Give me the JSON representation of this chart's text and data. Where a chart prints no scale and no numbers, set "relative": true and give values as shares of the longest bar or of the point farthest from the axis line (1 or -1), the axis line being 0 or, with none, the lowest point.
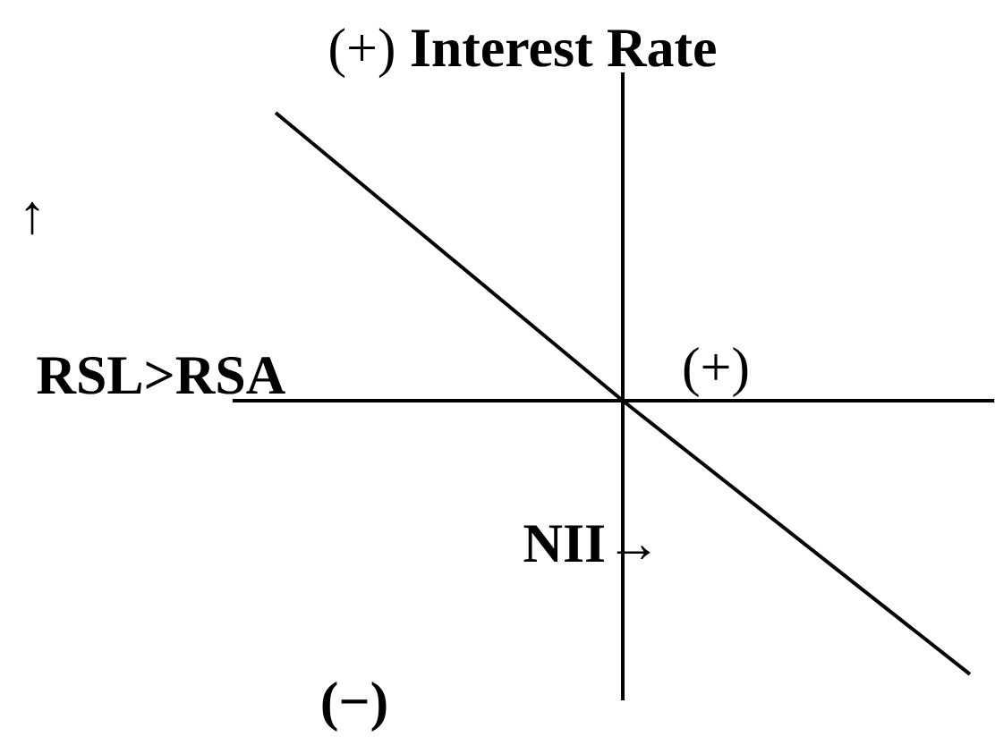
{
  "chart_data": {
    "type": "line",
    "title": "(+) **Interest Rate**",
    "categories": [
      null,
      null,
      null
    ],
    "values": [
      1,
      0,
      -0.95
    ],
    "relative": true,
    "color": "#000000",
    "line_style": "solid",
    "annotations": [
      "↑",
      "RSL>RSA",
      "(+)",
      "**NII**→",
      "(−)"
    ]
  }
}
